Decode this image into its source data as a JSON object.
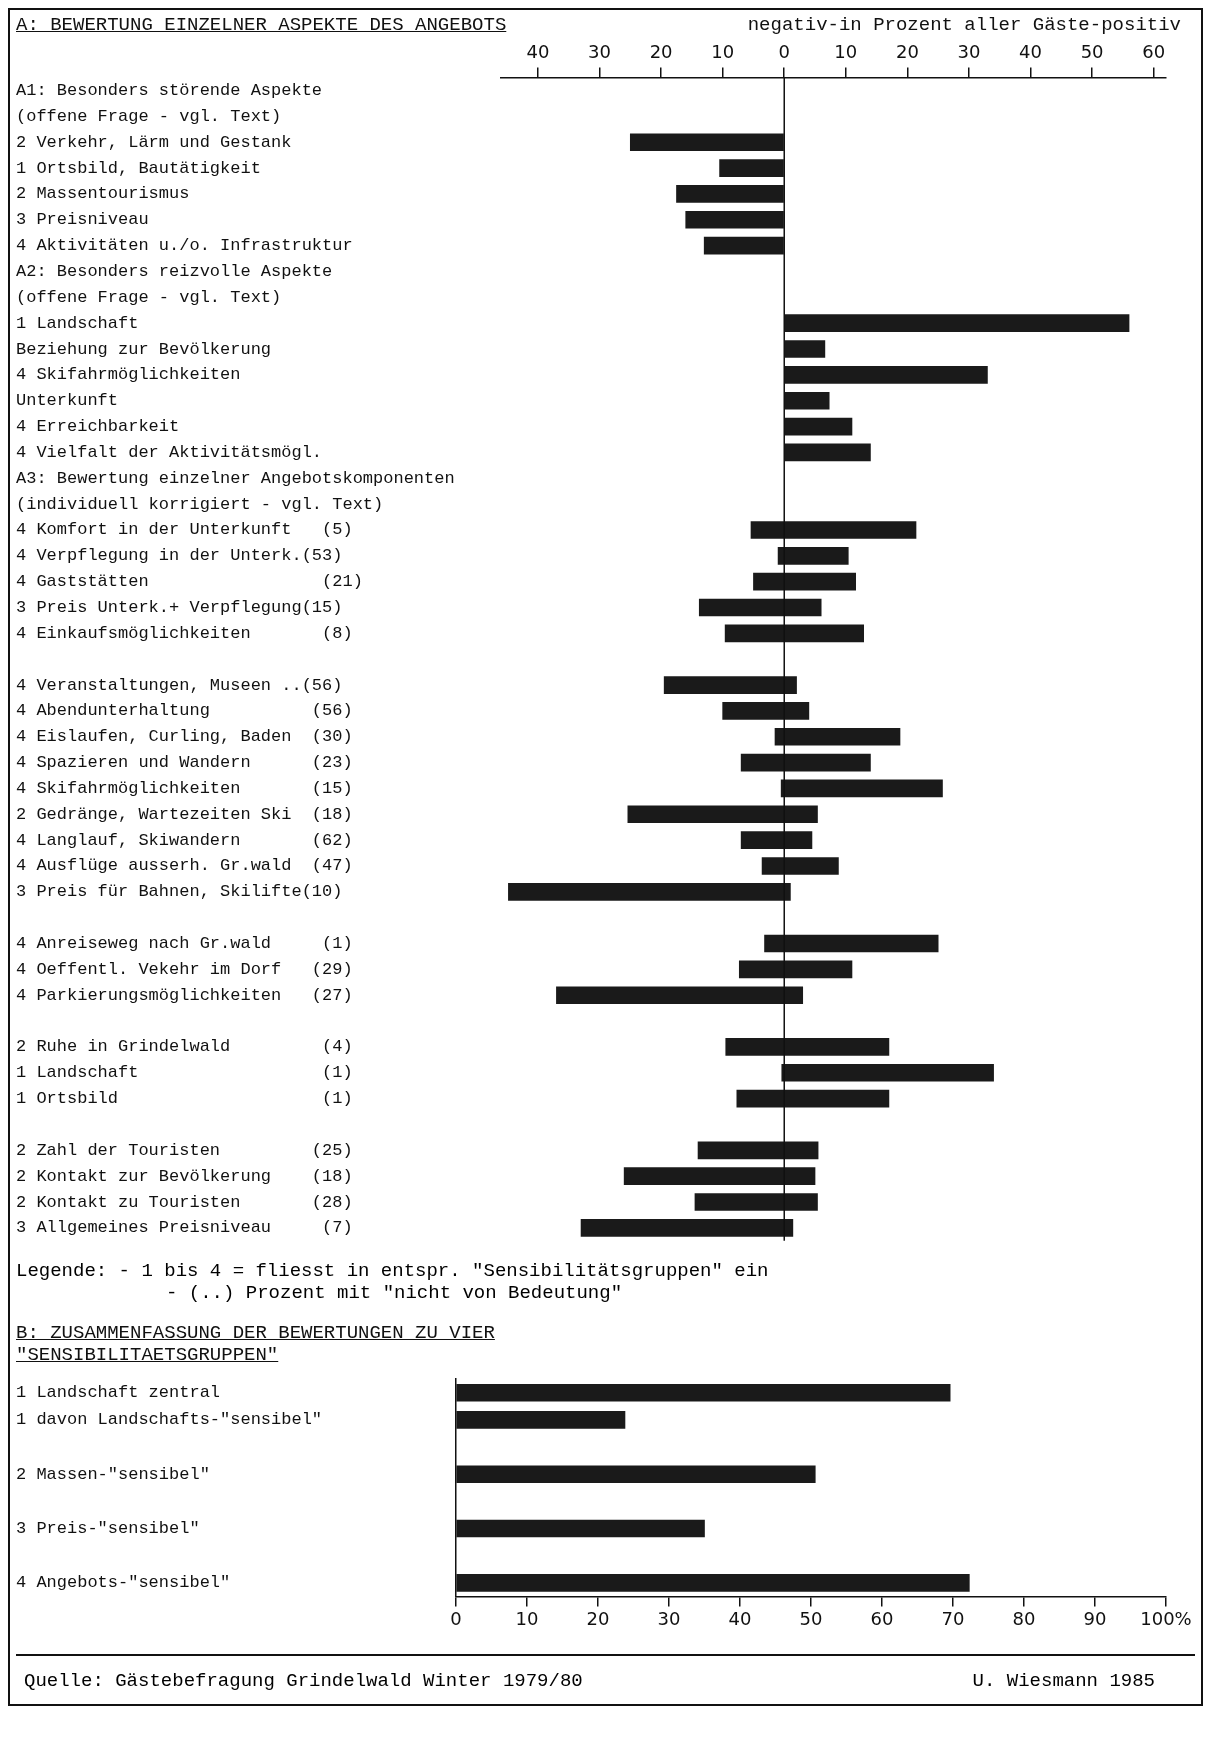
{
  "chart_data": [
    {
      "type": "bar",
      "orientation": "horizontal",
      "title": "A: BEWERTUNG EINZELNER ASPEKTE DES ANGEBOTS",
      "xlabel": "negativ-in Prozent aller Gäste-positiv",
      "categories": [
        "A1: Besonders störende Aspekte",
        "(offene Frage - vgl. Text)",
        "2 Verkehr, Lärm und Gestank",
        "1 Ortsbild, Bautätigkeit",
        "2 Massentourismus",
        "3 Preisniveau",
        "4 Aktivitäten u./o. Infrastruktur",
        "A2: Besonders reizvolle Aspekte",
        "(offene Frage - vgl. Text)",
        "1 Landschaft",
        "Beziehung zur Bevölkerung",
        "4 Skifahrmöglichkeiten",
        "Unterkunft",
        "4 Erreichbarkeit",
        "4 Vielfalt der Aktivitätsmögl.",
        "A3: Bewertung einzelner Angebotskomponenten",
        "(individuell korrigiert - vgl. Text)",
        "4 Komfort in der Unterkunft   (5)",
        "4 Verpflegung in der Unterk.(53)",
        "4 Gaststätten                 (21)",
        "3 Preis Unterk.+ Verpflegung(15)",
        "4 Einkaufsmöglichkeiten       (8)",
        null,
        "4 Veranstaltungen, Museen ..(56)",
        "4 Abendunterhaltung          (56)",
        "4 Eislaufen, Curling, Baden  (30)",
        "4 Spazieren und Wandern      (23)",
        "4 Skifahrmöglichkeiten       (15)",
        "2 Gedränge, Wartezeiten Ski  (18)",
        "4 Langlauf, Skiwandern       (62)",
        "4 Ausflüge ausserh. Gr.wald  (47)",
        "3 Preis für Bahnen, Skilifte(10)",
        null,
        "4 Anreiseweg nach Gr.wald     (1)",
        "4 Oeffentl. Vekehr im Dorf   (29)",
        "4 Parkierungsmöglichkeiten   (27)",
        null,
        "2 Ruhe in Grindelwald         (4)",
        "1 Landschaft                  (1)",
        "1 Ortsbild                    (1)",
        null,
        "2 Zahl der Touristen         (25)",
        "2 Kontakt zur Bevölkerung    (18)",
        "2 Kontakt zu Touristen       (28)",
        "3 Allgemeines Preisniveau     (7)"
      ],
      "base": [
        null,
        null,
        0,
        0,
        0,
        0,
        0,
        null,
        null,
        0,
        0,
        0,
        0,
        0,
        0,
        null,
        null,
        -5.4,
        -1,
        -5,
        -13.8,
        -9.6,
        null,
        -19.5,
        -10,
        -1.5,
        -7,
        -0.5,
        -25.4,
        -7,
        -3.6,
        -44.8,
        null,
        -3.2,
        -7.3,
        -37,
        null,
        -9.5,
        -0.4,
        -7.7,
        null,
        -14,
        -26,
        -14.5,
        -33
      ],
      "values": [
        null,
        null,
        -25,
        -10.5,
        -17.5,
        -16,
        -13,
        null,
        null,
        56,
        6.6,
        33,
        7.3,
        11,
        14,
        null,
        null,
        26.8,
        11.4,
        16.6,
        19.8,
        22.5,
        null,
        21.5,
        14,
        20.3,
        21,
        26.2,
        30.8,
        11.5,
        12.4,
        45.8,
        null,
        28.2,
        18.3,
        40,
        null,
        26.5,
        34.4,
        24.7,
        null,
        19.5,
        31,
        19.9,
        34.4
      ],
      "color": "#1a1a1a",
      "xlim": [
        -46,
        62
      ],
      "xticks": [
        {
          "value": -40,
          "label": "40"
        },
        {
          "value": -30,
          "label": "30"
        },
        {
          "value": -20,
          "label": "20"
        },
        {
          "value": -10,
          "label": "10"
        },
        0,
        10,
        20,
        30,
        40,
        50,
        60
      ],
      "ref_lines": [
        {
          "axis": "x",
          "value": 0
        }
      ],
      "annotations": [
        "Legende: - 1 bis 4 = fliesst in entspr. \"Sensibilitätsgruppen\" ein",
        "- (..) Prozent mit \"nicht von Bedeutung\""
      ]
    },
    {
      "type": "bar",
      "orientation": "horizontal",
      "title": "B: ZUSAMMENFASSUNG DER BEWERTUNGEN ZU VIER \"SENSIBILITAETSGRUPPEN\"",
      "categories": [
        "1 Landschaft zentral",
        "1 davon Landschafts-\"sensibel\"",
        null,
        "2 Massen-\"sensibel\"",
        null,
        "3 Preis-\"sensibel\"",
        null,
        "4 Angebots-\"sensibel\""
      ],
      "values": [
        69.6,
        23.8,
        null,
        50.6,
        null,
        35,
        null,
        72.3
      ],
      "color": "#1a1a1a",
      "xlim": [
        0,
        100
      ],
      "xticks": [
        0,
        10,
        20,
        30,
        40,
        50,
        60,
        70,
        80,
        90,
        {
          "value": 100,
          "label": "100%"
        }
      ],
      "annotations": [
        "Quelle: Gästebefragung Grindelwald Winter 1979/80",
        "U. Wiesmann 1985"
      ]
    }
  ]
}
